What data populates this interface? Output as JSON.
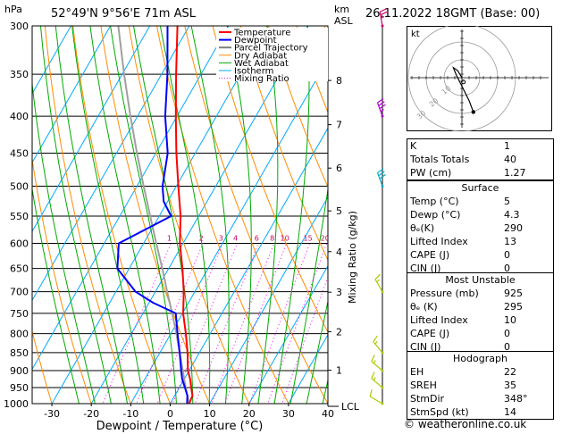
{
  "header": {
    "hpa_label": "hPa",
    "location": "52°49'N  9°56'E  71m  ASL",
    "km_label": "km",
    "asl_label": "ASL",
    "datetime": "26.11.2022  18GMT  (Base: 00)"
  },
  "chart_data": {
    "type": "skew-t",
    "xlabel": "Dewpoint / Temperature (°C)",
    "right_axis_label": "Mixing Ratio (g/kg)",
    "xlim": [
      -35,
      40
    ],
    "pressure_range": [
      1000,
      300
    ],
    "x_ticks": [
      -30,
      -20,
      -10,
      0,
      10,
      20,
      30,
      40
    ],
    "pressure_levels": [
      300,
      350,
      400,
      450,
      500,
      550,
      600,
      650,
      700,
      750,
      800,
      850,
      900,
      950,
      1000
    ],
    "km_ticks": [
      {
        "label": "8",
        "p": 357
      },
      {
        "label": "7",
        "p": 411
      },
      {
        "label": "6",
        "p": 472
      },
      {
        "label": "5",
        "p": 541
      },
      {
        "label": "4",
        "p": 616
      },
      {
        "label": "3",
        "p": 701
      },
      {
        "label": "2",
        "p": 795
      },
      {
        "label": "1",
        "p": 899
      }
    ],
    "lcl_label": "LCL",
    "lcl_p": 1000,
    "mixing_ratios": [
      "1",
      "2",
      "3",
      "4",
      "6",
      "8",
      "10",
      "15",
      "20",
      "25"
    ],
    "legend": [
      {
        "label": "Temperature",
        "color": "#ff0000"
      },
      {
        "label": "Dewpoint",
        "color": "#0000ff"
      },
      {
        "label": "Parcel Trajectory",
        "color": "#808080"
      },
      {
        "label": "Dry Adiabat",
        "color": "#ff8c00"
      },
      {
        "label": "Wet Adiabat",
        "color": "#00aa00"
      },
      {
        "label": "Isotherm",
        "color": "#00aaff"
      },
      {
        "label": "Mixing Ratio",
        "color": "#ff00ff"
      }
    ],
    "temperature": [
      {
        "p": 1000,
        "t": 4.8
      },
      {
        "p": 975,
        "t": 4.5
      },
      {
        "p": 950,
        "t": 3.0
      },
      {
        "p": 925,
        "t": 1.5
      },
      {
        "p": 900,
        "t": -0.3
      },
      {
        "p": 850,
        "t": -3.0
      },
      {
        "p": 800,
        "t": -6.2
      },
      {
        "p": 750,
        "t": -9.8
      },
      {
        "p": 700,
        "t": -12.8
      },
      {
        "p": 650,
        "t": -16.5
      },
      {
        "p": 600,
        "t": -20.8
      },
      {
        "p": 550,
        "t": -24.6
      },
      {
        "p": 500,
        "t": -29.5
      },
      {
        "p": 450,
        "t": -34.8
      },
      {
        "p": 400,
        "t": -40.3
      },
      {
        "p": 350,
        "t": -46.3
      },
      {
        "p": 300,
        "t": -53.0
      }
    ],
    "dewpoint": [
      {
        "p": 1000,
        "t": 4.3
      },
      {
        "p": 975,
        "t": 3.2
      },
      {
        "p": 950,
        "t": 1.4
      },
      {
        "p": 925,
        "t": -0.5
      },
      {
        "p": 900,
        "t": -2.0
      },
      {
        "p": 850,
        "t": -5.0
      },
      {
        "p": 800,
        "t": -8.3
      },
      {
        "p": 750,
        "t": -11.7
      },
      {
        "p": 725,
        "t": -19.0
      },
      {
        "p": 700,
        "t": -25.0
      },
      {
        "p": 650,
        "t": -33.0
      },
      {
        "p": 600,
        "t": -36.3
      },
      {
        "p": 550,
        "t": -27.0
      },
      {
        "p": 525,
        "t": -31.0
      },
      {
        "p": 500,
        "t": -33.5
      },
      {
        "p": 450,
        "t": -37.0
      },
      {
        "p": 400,
        "t": -43.0
      },
      {
        "p": 350,
        "t": -48.5
      },
      {
        "p": 300,
        "t": -55.5
      }
    ],
    "parcel": [
      {
        "p": 1000,
        "t": 4.8
      },
      {
        "p": 950,
        "t": 1.6
      },
      {
        "p": 900,
        "t": -1.6
      },
      {
        "p": 850,
        "t": -5.0
      },
      {
        "p": 800,
        "t": -8.6
      },
      {
        "p": 750,
        "t": -12.6
      },
      {
        "p": 700,
        "t": -17.0
      },
      {
        "p": 650,
        "t": -21.6
      },
      {
        "p": 600,
        "t": -26.8
      },
      {
        "p": 550,
        "t": -32.3
      },
      {
        "p": 500,
        "t": -38.3
      },
      {
        "p": 450,
        "t": -44.8
      },
      {
        "p": 400,
        "t": -51.8
      },
      {
        "p": 350,
        "t": -59.5
      },
      {
        "p": 300,
        "t": -68.0
      }
    ],
    "wind_barbs": [
      {
        "p": 1000,
        "dir": 300,
        "kt": 10,
        "color": "#aacc00"
      },
      {
        "p": 950,
        "dir": 310,
        "kt": 15,
        "color": "#aacc00"
      },
      {
        "p": 900,
        "dir": 310,
        "kt": 15,
        "color": "#aacc00"
      },
      {
        "p": 850,
        "dir": 320,
        "kt": 15,
        "color": "#aacc00"
      },
      {
        "p": 700,
        "dir": 330,
        "kt": 15,
        "color": "#aacc00"
      },
      {
        "p": 500,
        "dir": 340,
        "kt": 30,
        "color": "#00aacc"
      },
      {
        "p": 400,
        "dir": 340,
        "kt": 35,
        "color": "#aa00cc"
      },
      {
        "p": 300,
        "dir": 350,
        "kt": 25,
        "color": "#cc0066"
      }
    ]
  },
  "hodograph": {
    "label": "kt",
    "ring_labels": [
      "10",
      "20",
      "30"
    ],
    "trace": [
      {
        "u": 0,
        "v": 0
      },
      {
        "u": -1.5,
        "v": 2.5
      },
      {
        "u": -3,
        "v": 3.5
      },
      {
        "u": -2,
        "v": 1
      },
      {
        "u": 0,
        "v": -3
      },
      {
        "u": 2.5,
        "v": -8
      },
      {
        "u": 4,
        "v": -12
      }
    ],
    "storm_motion": {
      "u": 0.5,
      "v": -1.5
    }
  },
  "indices": {
    "rows": [
      {
        "label": "K",
        "value": "1"
      },
      {
        "label": "Totals Totals",
        "value": "40"
      },
      {
        "label": "PW (cm)",
        "value": "1.27"
      }
    ]
  },
  "surface": {
    "title": "Surface",
    "rows": [
      {
        "label": "Temp (°C)",
        "value": "5"
      },
      {
        "label": "Dewp (°C)",
        "value": "4.3"
      },
      {
        "label": "θₑ(K)",
        "value": "290"
      },
      {
        "label": "Lifted Index",
        "value": "13"
      },
      {
        "label": "CAPE (J)",
        "value": "0"
      },
      {
        "label": "CIN (J)",
        "value": "0"
      }
    ]
  },
  "most_unstable": {
    "title": "Most Unstable",
    "rows": [
      {
        "label": "Pressure (mb)",
        "value": "925"
      },
      {
        "label": "θₑ (K)",
        "value": "295"
      },
      {
        "label": "Lifted Index",
        "value": "10"
      },
      {
        "label": "CAPE (J)",
        "value": "0"
      },
      {
        "label": "CIN (J)",
        "value": "0"
      }
    ]
  },
  "hodograph_table": {
    "title": "Hodograph",
    "rows": [
      {
        "label": "EH",
        "value": "22"
      },
      {
        "label": "SREH",
        "value": "35"
      },
      {
        "label": "StmDir",
        "value": "348°"
      },
      {
        "label": "StmSpd (kt)",
        "value": "14"
      }
    ]
  },
  "credit": "© weatheronline.co.uk"
}
